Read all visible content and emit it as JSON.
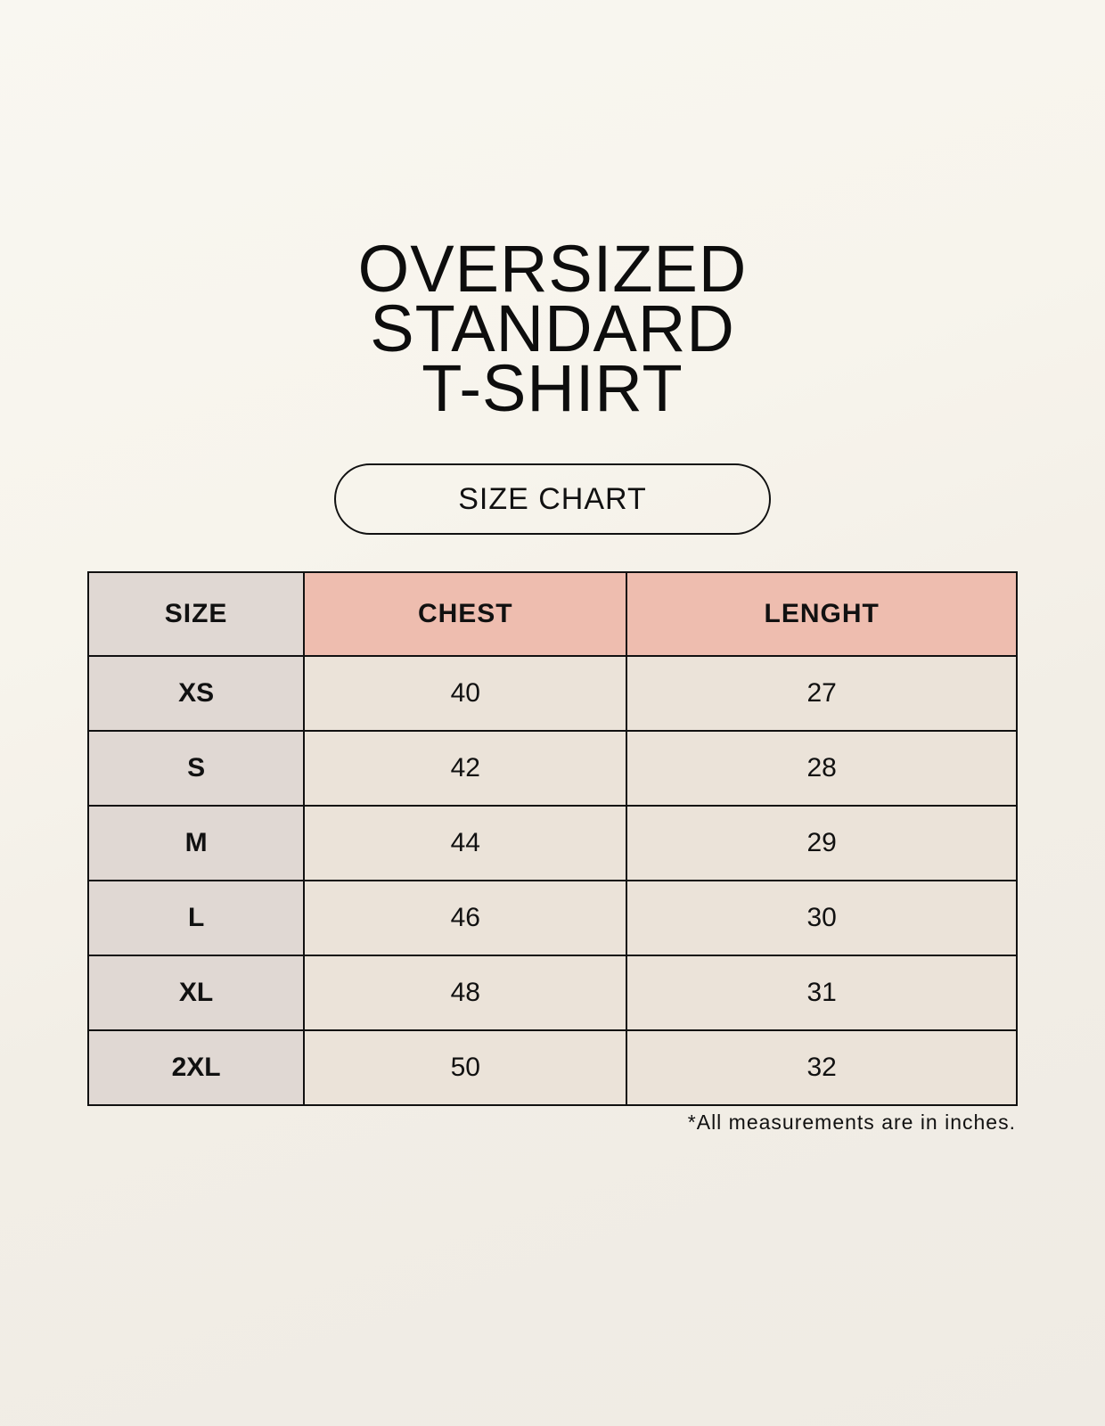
{
  "title_lines": [
    "OVERSIZED",
    "STANDARD",
    "T-SHIRT"
  ],
  "subtitle": "SIZE CHART",
  "table": {
    "headers": [
      "SIZE",
      "CHEST",
      "LENGHT"
    ],
    "rows": [
      [
        "XS",
        "40",
        "27"
      ],
      [
        "S",
        "42",
        "28"
      ],
      [
        "M",
        "44",
        "29"
      ],
      [
        "L",
        "46",
        "30"
      ],
      [
        "XL",
        "48",
        "31"
      ],
      [
        "2XL",
        "50",
        "32"
      ]
    ]
  },
  "footnote": "*All measurements are in inches.",
  "colors": {
    "size_column": "#e0d8d3",
    "header_accent": "#eebdaf",
    "cell_bg": "#ebe3d9"
  }
}
